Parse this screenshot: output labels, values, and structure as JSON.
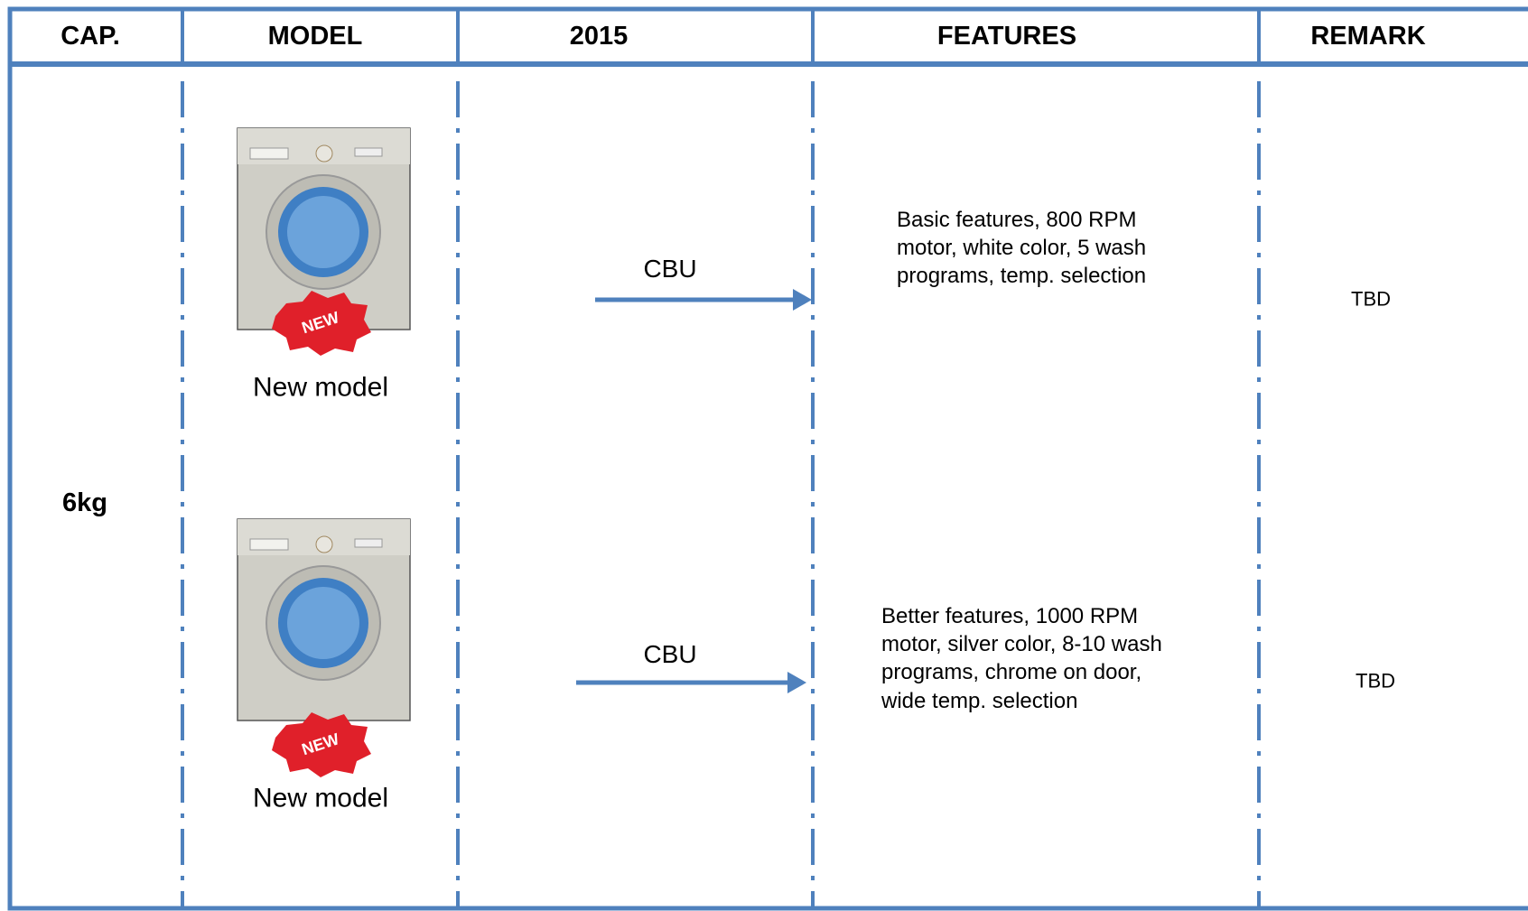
{
  "header": {
    "columns": [
      "CAP.",
      "MODEL",
      "2015",
      "FEATURES",
      "REMARK"
    ]
  },
  "capacity": "6kg",
  "rows": [
    {
      "badge": "NEW",
      "model": "New model",
      "source": "CBU",
      "features": "Basic features, 800 RPM motor, white color, 5 wash programs, temp. selection",
      "remark": "TBD"
    },
    {
      "badge": "NEW",
      "model": "New model",
      "source": "CBU",
      "features": "Better features, 1000 RPM motor, silver color, 8-10 wash programs, chrome on door, wide temp. selection",
      "remark": "TBD"
    }
  ]
}
